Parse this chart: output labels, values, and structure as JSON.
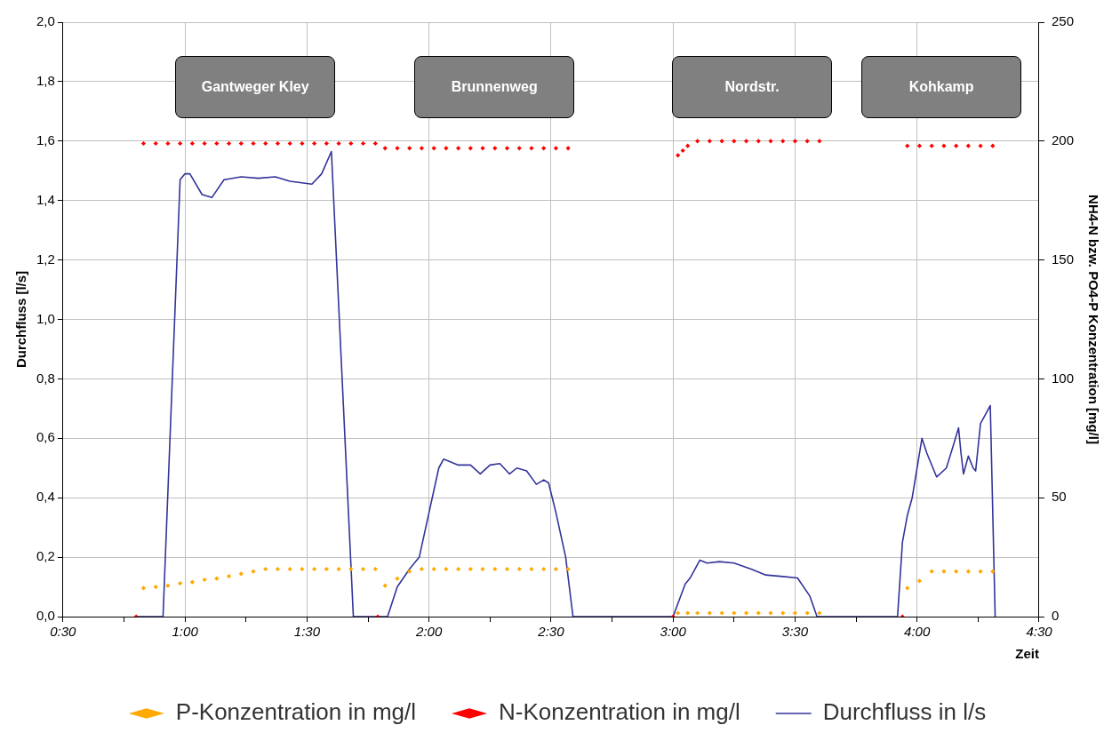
{
  "chart_data": {
    "type": "line",
    "xlabel": "Zeit",
    "ylabel": "Durchfluss [l/s]",
    "y2label": "NH4-N bzw. PO4-P Konzentration [mg/l]",
    "xlim": [
      0.5,
      4.5
    ],
    "xticks": [
      {
        "value": 0.5,
        "label": "0:30"
      },
      {
        "value": 0.75,
        "label": null
      },
      {
        "value": 1,
        "label": "1:00"
      },
      {
        "value": 1.25,
        "label": null
      },
      {
        "value": 1.5,
        "label": "1:30"
      },
      {
        "value": 1.75,
        "label": null
      },
      {
        "value": 2,
        "label": "2:00"
      },
      {
        "value": 2.25,
        "label": null
      },
      {
        "value": 2.5,
        "label": "2:30"
      },
      {
        "value": 2.75,
        "label": null
      },
      {
        "value": 3,
        "label": "3:00"
      },
      {
        "value": 3.25,
        "label": null
      },
      {
        "value": 3.5,
        "label": "3:30"
      },
      {
        "value": 3.75,
        "label": null
      },
      {
        "value": 4,
        "label": "4:00"
      },
      {
        "value": 4.25,
        "label": null
      },
      {
        "value": 4.5,
        "label": "4:30"
      }
    ],
    "ylim": [
      0,
      2
    ],
    "yticks": [
      {
        "value": 0,
        "label": "0,0"
      },
      {
        "value": 0.2,
        "label": "0,2"
      },
      {
        "value": 0.4,
        "label": "0,4"
      },
      {
        "value": 0.6,
        "label": "0,6"
      },
      {
        "value": 0.8,
        "label": "0,8"
      },
      {
        "value": 1,
        "label": "1,0"
      },
      {
        "value": 1.2,
        "label": "1,2"
      },
      {
        "value": 1.4,
        "label": "1,4"
      },
      {
        "value": 1.6,
        "label": "1,6"
      },
      {
        "value": 1.8,
        "label": "1,8"
      },
      {
        "value": 2,
        "label": "2,0"
      }
    ],
    "y2lim": [
      0,
      250
    ],
    "y2ticks": [
      0,
      50,
      100,
      150,
      200,
      250
    ],
    "grid": true,
    "legend": "bottom",
    "annotations": [
      "Gantweger Kley",
      "Brunnenweg",
      "Nordstr.",
      "Kohkamp"
    ],
    "series": [
      {
        "name": "Durchfluss in l/s",
        "type": "line",
        "color": "#333399",
        "marker": "none",
        "line_style": "solid",
        "x": [
          0.8,
          0.91,
          0.98,
          1.0,
          1.02,
          1.07,
          1.11,
          1.16,
          1.23,
          1.3,
          1.37,
          1.43,
          1.52,
          1.56,
          1.6,
          1.69,
          1.83,
          1.87,
          1.92,
          1.96,
          2.0,
          2.04,
          2.06,
          2.12,
          2.17,
          2.21,
          2.25,
          2.29,
          2.33,
          2.36,
          2.4,
          2.44,
          2.47,
          2.49,
          2.52,
          2.56,
          2.59,
          3.0,
          3.05,
          3.07,
          3.11,
          3.14,
          3.19,
          3.25,
          3.32,
          3.38,
          3.45,
          3.51,
          3.56,
          3.59,
          3.92,
          3.94,
          3.96,
          3.98,
          4.0,
          4.02,
          4.04,
          4.08,
          4.12,
          4.15,
          4.17,
          4.18,
          4.19,
          4.21,
          4.23,
          4.24,
          4.26,
          4.28,
          4.3,
          4.32
        ],
        "values": [
          0,
          0,
          1.47,
          1.49,
          1.49,
          1.42,
          1.41,
          1.47,
          1.48,
          1.475,
          1.48,
          1.465,
          1.455,
          1.49,
          1.565,
          0,
          0,
          0.1,
          0.16,
          0.2,
          0.35,
          0.5,
          0.53,
          0.51,
          0.51,
          0.48,
          0.51,
          0.515,
          0.48,
          0.5,
          0.49,
          0.445,
          0.46,
          0.45,
          0.35,
          0.2,
          0,
          0,
          0.11,
          0.13,
          0.19,
          0.18,
          0.185,
          0.18,
          0.16,
          0.14,
          0.135,
          0.13,
          0.07,
          0,
          0,
          0.25,
          0.34,
          0.4,
          0.5,
          0.6,
          0.55,
          0.47,
          0.5,
          0.58,
          0.635,
          0.55,
          0.48,
          0.54,
          0.5,
          0.49,
          0.65,
          0.68,
          0.71,
          0
        ]
      },
      {
        "name": "P-Konzentration in mg/l",
        "type": "scatter",
        "axis": "y2",
        "color": "#ffaa00",
        "marker": "diamond",
        "x": [
          0.83,
          0.88,
          0.93,
          0.98,
          1.03,
          1.08,
          1.13,
          1.18,
          1.23,
          1.28,
          1.33,
          1.38,
          1.43,
          1.48,
          1.53,
          1.58,
          1.63,
          1.68,
          1.73,
          1.78,
          1.82,
          1.87,
          1.92,
          1.97,
          2.02,
          2.07,
          2.12,
          2.17,
          2.22,
          2.27,
          2.32,
          2.37,
          2.42,
          2.47,
          2.52,
          2.57,
          3.02,
          3.06,
          3.1,
          3.15,
          3.2,
          3.25,
          3.3,
          3.35,
          3.4,
          3.45,
          3.5,
          3.55,
          3.6,
          3.96,
          4.01,
          4.06,
          4.11,
          4.16,
          4.21,
          4.26,
          4.31
        ],
        "values": [
          12,
          12.5,
          13,
          14,
          14.5,
          15.5,
          16,
          17,
          18,
          19,
          20,
          20,
          20,
          20,
          20,
          20,
          20,
          20,
          20,
          20,
          13,
          16,
          19,
          20,
          20,
          20,
          20,
          20,
          20,
          20,
          20,
          20,
          20,
          20,
          20,
          20,
          1.5,
          1.5,
          1.5,
          1.5,
          1.5,
          1.5,
          1.5,
          1.5,
          1.5,
          1.5,
          1.5,
          1.5,
          1.5,
          12,
          15,
          19,
          19,
          19,
          19,
          19,
          19
        ]
      },
      {
        "name": "N-Konzentration in mg/l",
        "type": "scatter",
        "axis": "y2",
        "color": "#ff0000",
        "marker": "diamond",
        "x": [
          0.8,
          0.83,
          0.88,
          0.93,
          0.98,
          1.03,
          1.08,
          1.13,
          1.18,
          1.23,
          1.28,
          1.33,
          1.38,
          1.43,
          1.48,
          1.53,
          1.58,
          1.63,
          1.68,
          1.73,
          1.78,
          1.79,
          1.82,
          1.87,
          1.92,
          1.97,
          2.02,
          2.07,
          2.12,
          2.17,
          2.22,
          2.27,
          2.32,
          2.37,
          2.42,
          2.47,
          2.52,
          2.57,
          3.0,
          3.02,
          3.04,
          3.06,
          3.1,
          3.15,
          3.2,
          3.25,
          3.3,
          3.35,
          3.4,
          3.45,
          3.5,
          3.55,
          3.6,
          3.94,
          3.96,
          4.01,
          4.06,
          4.11,
          4.16,
          4.21,
          4.26,
          4.31
        ],
        "values": [
          0,
          199,
          199,
          199,
          199,
          199,
          199,
          199,
          199,
          199,
          199,
          199,
          199,
          199,
          199,
          199,
          199,
          199,
          199,
          199,
          199,
          0,
          197,
          197,
          197,
          197,
          197,
          197,
          197,
          197,
          197,
          197,
          197,
          197,
          197,
          197,
          197,
          197,
          0,
          194,
          196,
          198,
          200,
          200,
          200,
          200,
          200,
          200,
          200,
          200,
          200,
          200,
          200,
          0,
          198,
          198,
          198,
          198,
          198,
          198,
          198,
          198
        ]
      }
    ]
  }
}
